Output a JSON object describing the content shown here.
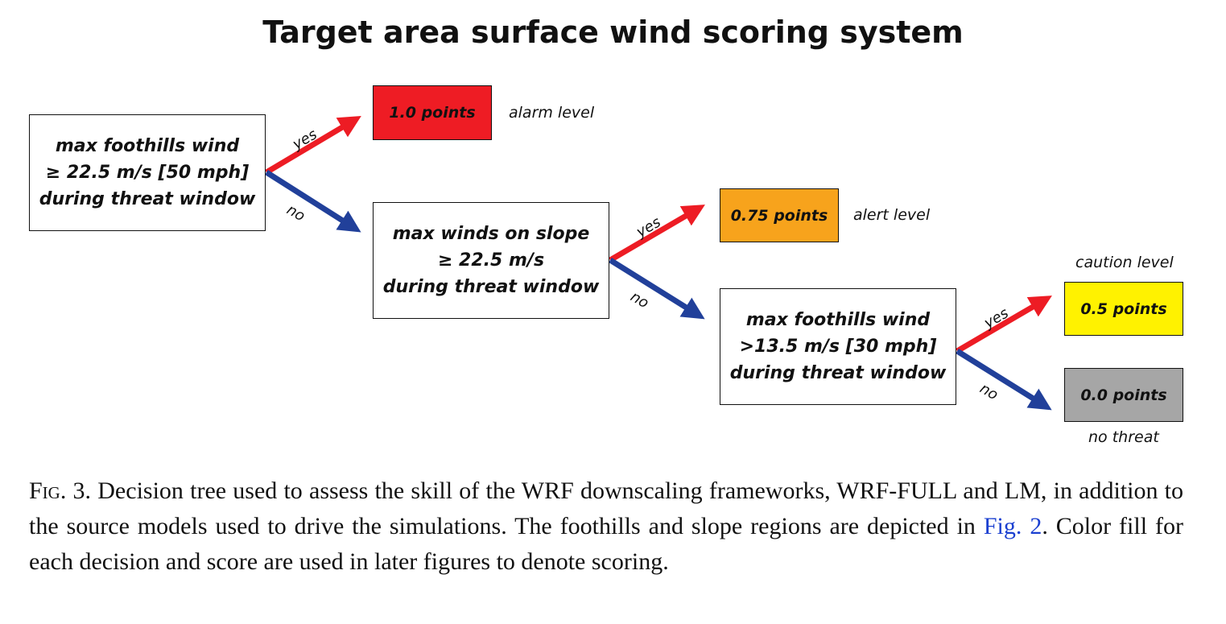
{
  "title": "Target area surface wind scoring system",
  "nodes": {
    "q1": [
      "max foothills wind",
      "≥ 22.5 m/s [50 mph]",
      "during threat window"
    ],
    "q2": [
      "max winds on slope",
      "≥ 22.5 m/s",
      "during threat window"
    ],
    "q3": [
      "max foothills wind",
      ">13.5 m/s [30 mph]",
      "during threat window"
    ]
  },
  "edges": {
    "yes": "yes",
    "no": "no"
  },
  "scores": [
    {
      "label": "1.0 points",
      "level": "alarm level",
      "color": "#ee1c24"
    },
    {
      "label": "0.75 points",
      "level": "alert level",
      "color": "#f7a31c"
    },
    {
      "label": "0.5 points",
      "level": "caution level",
      "color": "#fff200"
    },
    {
      "label": "0.0 points",
      "level": "no threat",
      "color": "#a6a6a6"
    }
  ],
  "colors": {
    "yes_arrow": "#ed1c24",
    "no_arrow": "#21409a"
  },
  "caption": {
    "fig_label": "Fig. 3.",
    "text_before": " Decision tree used to assess the skill of the WRF downscaling frameworks, WRF-FULL and LM, in addition to the source models used to drive the simulations. The foothills and slope regions are depicted in ",
    "ref": "Fig. 2",
    "text_after": ". Color fill for each decision and score are used in later figures to denote scoring."
  }
}
